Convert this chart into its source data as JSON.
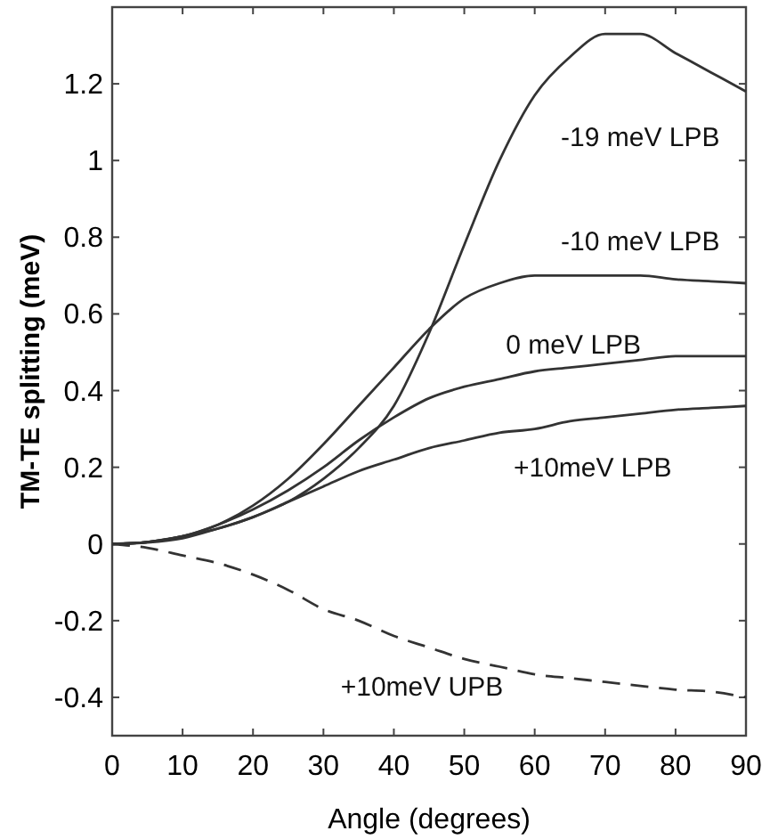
{
  "chart_data": {
    "type": "line",
    "xlabel": "Angle (degrees)",
    "ylabel": "TM-TE splitting (meV)",
    "xlim": [
      0,
      90
    ],
    "ylim": [
      -0.5,
      1.4
    ],
    "xticks": [
      0,
      10,
      20,
      30,
      40,
      50,
      60,
      70,
      80,
      90
    ],
    "yticks": [
      -0.4,
      -0.2,
      0,
      0.2,
      0.4,
      0.6,
      0.8,
      1,
      1.2
    ],
    "grid": false,
    "x": [
      0,
      5,
      10,
      15,
      20,
      25,
      30,
      35,
      40,
      45,
      50,
      55,
      60,
      65,
      70,
      75,
      80,
      85,
      90
    ],
    "series": [
      {
        "name": "-19 meV LPB",
        "color": "#333333",
        "line_style": "solid",
        "values": [
          0,
          0.005,
          0.02,
          0.04,
          0.07,
          0.11,
          0.17,
          0.25,
          0.36,
          0.55,
          0.78,
          1.0,
          1.17,
          1.27,
          1.33,
          1.33,
          1.28,
          1.23,
          1.18
        ]
      },
      {
        "name": "-10 meV LPB",
        "color": "#333333",
        "line_style": "solid",
        "values": [
          0,
          0.005,
          0.02,
          0.05,
          0.1,
          0.17,
          0.26,
          0.36,
          0.46,
          0.56,
          0.64,
          0.68,
          0.7,
          0.7,
          0.7,
          0.7,
          0.69,
          0.685,
          0.68
        ]
      },
      {
        "name": "0 meV LPB",
        "color": "#333333",
        "line_style": "solid",
        "values": [
          0,
          0.005,
          0.02,
          0.05,
          0.09,
          0.14,
          0.2,
          0.27,
          0.33,
          0.38,
          0.41,
          0.43,
          0.45,
          0.46,
          0.47,
          0.48,
          0.49,
          0.49,
          0.49
        ]
      },
      {
        "name": "+10meV LPB",
        "color": "#333333",
        "line_style": "solid",
        "values": [
          0,
          0.004,
          0.015,
          0.04,
          0.07,
          0.11,
          0.15,
          0.19,
          0.22,
          0.25,
          0.27,
          0.29,
          0.3,
          0.32,
          0.33,
          0.34,
          0.35,
          0.355,
          0.36
        ]
      },
      {
        "name": "+10meV UPB",
        "color": "#333333",
        "line_style": "dashed",
        "values": [
          0,
          -0.01,
          -0.03,
          -0.05,
          -0.08,
          -0.12,
          -0.17,
          -0.2,
          -0.24,
          -0.27,
          -0.3,
          -0.32,
          -0.34,
          -0.35,
          -0.36,
          -0.37,
          -0.38,
          -0.385,
          -0.4
        ]
      }
    ]
  }
}
